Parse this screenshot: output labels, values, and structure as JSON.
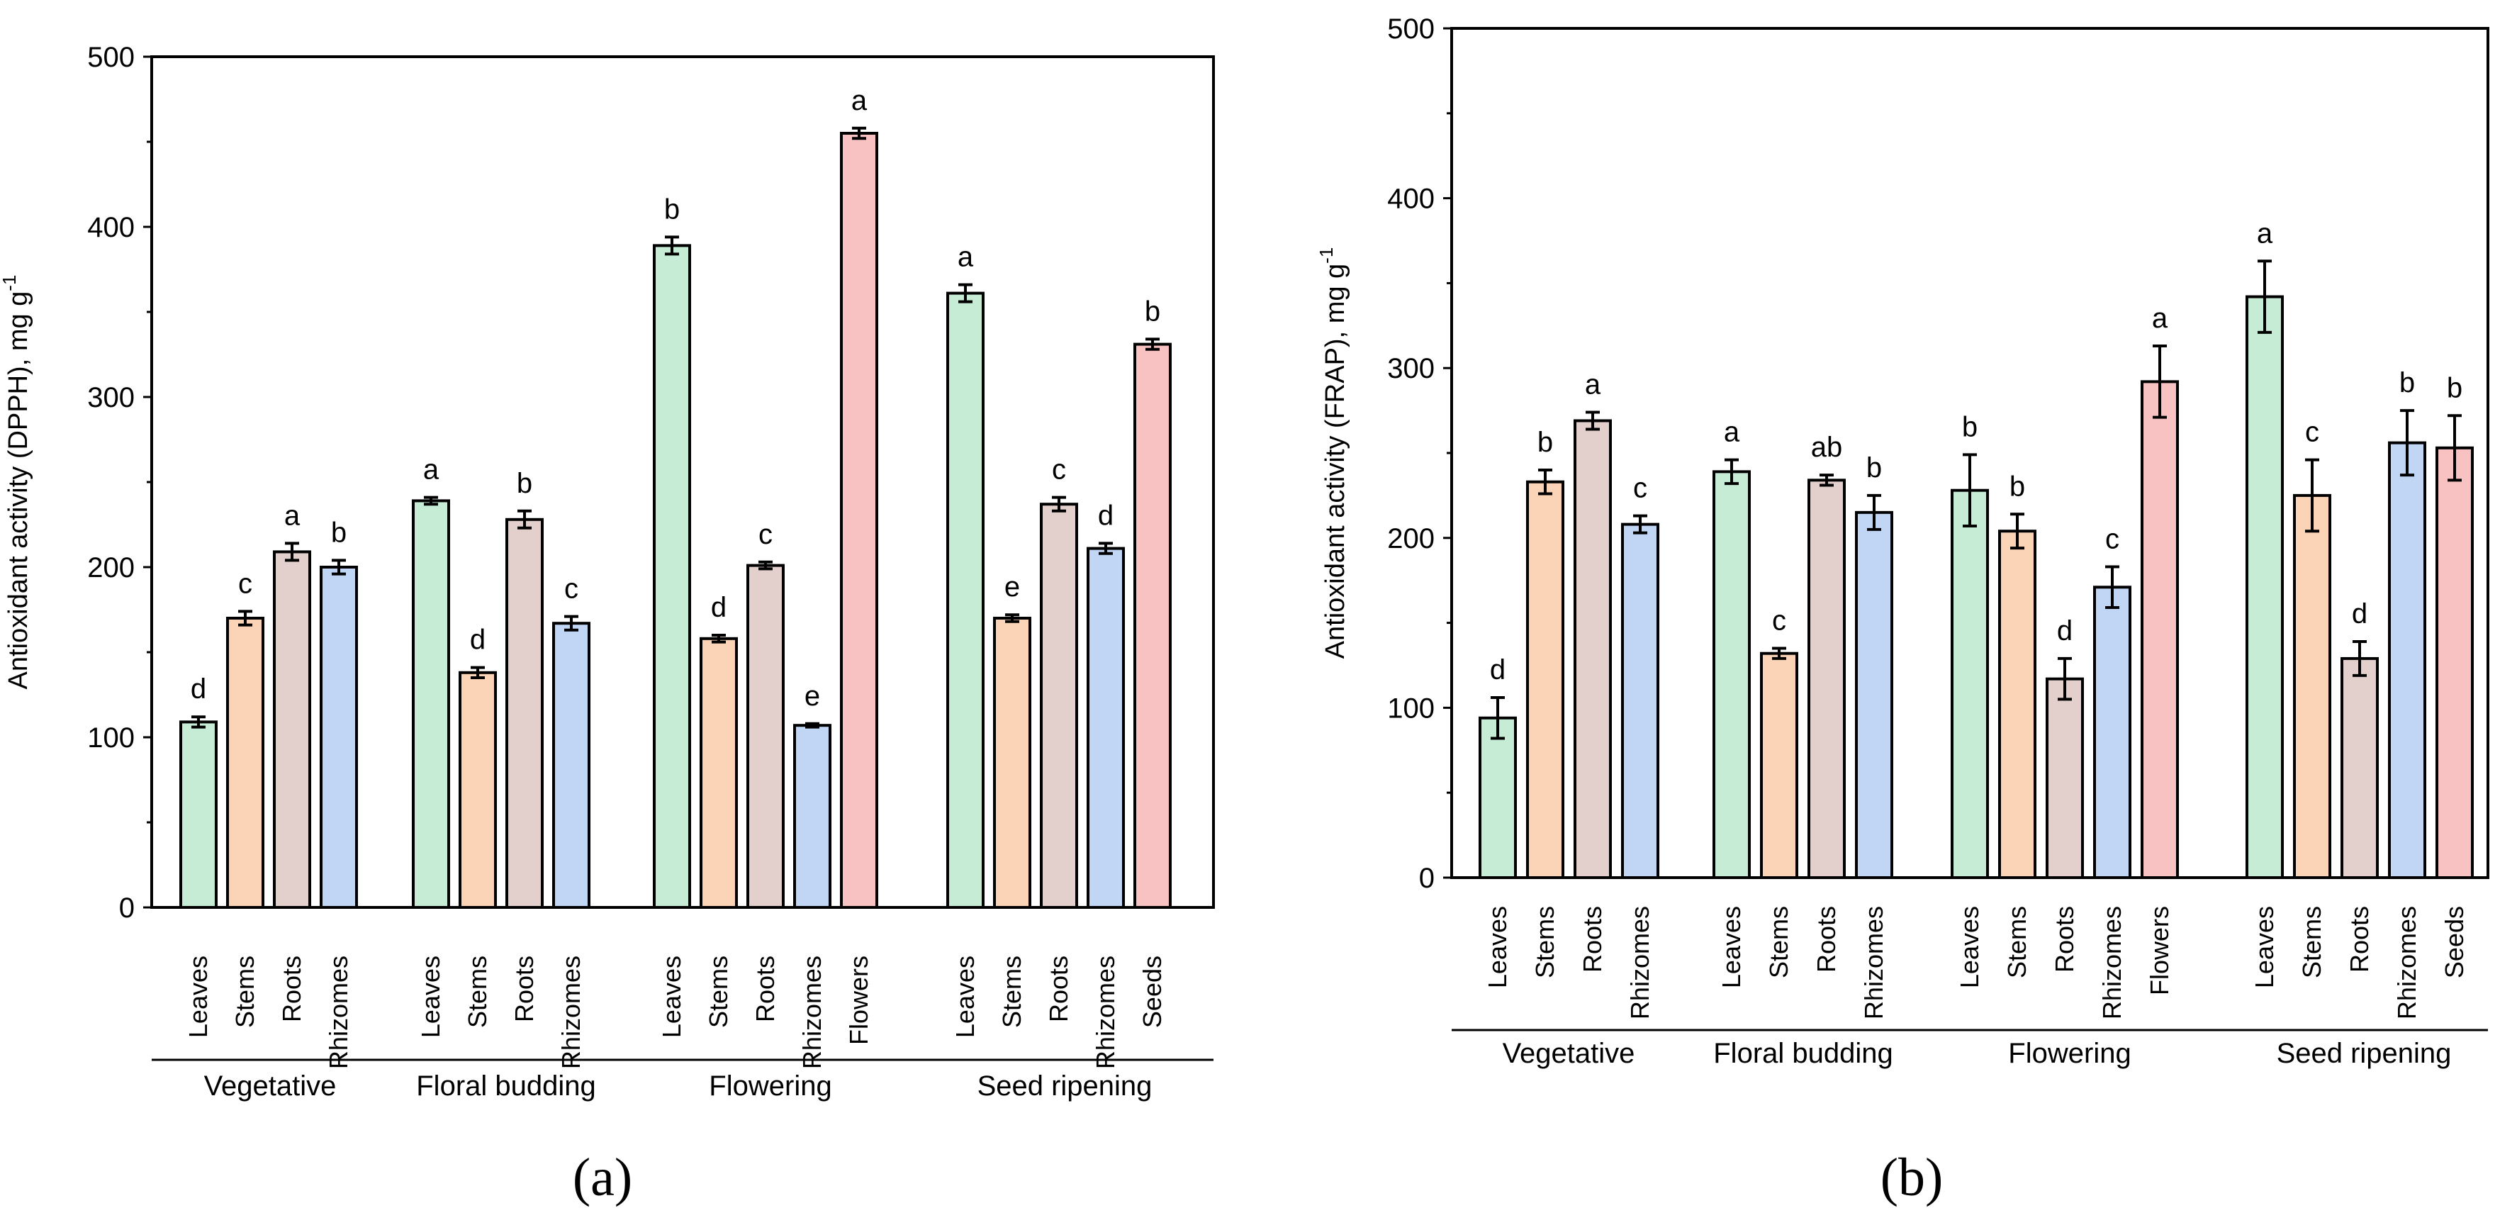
{
  "colors": {
    "Leaves": "#c6ecd6",
    "Stems": "#fbd3b6",
    "Roots": "#e3d0cc",
    "Rhizomes": "#c1d6f5",
    "Flowers": "#f8c2c3",
    "Seeds": "#f8c2c3",
    "stroke": "#000000"
  },
  "chart_data": [
    {
      "type": "bar",
      "panel_label": "(a)",
      "ylabel": "Antioxidant activity (DPPH), mg g",
      "ylabel_sup": "-1",
      "ylim": [
        0,
        500
      ],
      "yticks": [
        0,
        100,
        200,
        300,
        400,
        500
      ],
      "error_bars": true,
      "groups": [
        {
          "name": "Vegetative",
          "bars": [
            {
              "label": "Leaves",
              "value": 109,
              "error": 3,
              "letter": "d"
            },
            {
              "label": "Stems",
              "value": 170,
              "error": 4,
              "letter": "c"
            },
            {
              "label": "Roots",
              "value": 209,
              "error": 5,
              "letter": "a"
            },
            {
              "label": "Rhizomes",
              "value": 200,
              "error": 4,
              "letter": "b"
            }
          ]
        },
        {
          "name": "Floral budding",
          "bars": [
            {
              "label": "Leaves",
              "value": 239,
              "error": 2,
              "letter": "a"
            },
            {
              "label": "Stems",
              "value": 138,
              "error": 3,
              "letter": "d"
            },
            {
              "label": "Roots",
              "value": 228,
              "error": 5,
              "letter": "b"
            },
            {
              "label": "Rhizomes",
              "value": 167,
              "error": 4,
              "letter": "c"
            }
          ]
        },
        {
          "name": "Flowering",
          "bars": [
            {
              "label": "Leaves",
              "value": 389,
              "error": 5,
              "letter": "b"
            },
            {
              "label": "Stems",
              "value": 158,
              "error": 2,
              "letter": "d"
            },
            {
              "label": "Roots",
              "value": 201,
              "error": 2,
              "letter": "c"
            },
            {
              "label": "Rhizomes",
              "value": 107,
              "error": 1,
              "letter": "e"
            },
            {
              "label": "Flowers",
              "value": 455,
              "error": 3,
              "letter": "a"
            }
          ]
        },
        {
          "name": "Seed ripening",
          "bars": [
            {
              "label": "Leaves",
              "value": 361,
              "error": 5,
              "letter": "a"
            },
            {
              "label": "Stems",
              "value": 170,
              "error": 2,
              "letter": "e"
            },
            {
              "label": "Roots",
              "value": 237,
              "error": 4,
              "letter": "c"
            },
            {
              "label": "Rhizomes",
              "value": 211,
              "error": 3,
              "letter": "d"
            },
            {
              "label": "Seeds",
              "value": 331,
              "error": 3,
              "letter": "b"
            }
          ]
        }
      ]
    },
    {
      "type": "bar",
      "panel_label": "(b)",
      "ylabel": "Antioxidant activity (FRAP), mg g",
      "ylabel_sup": "-1",
      "ylim": [
        0,
        500
      ],
      "yticks": [
        0,
        100,
        200,
        300,
        400,
        500
      ],
      "error_bars": true,
      "groups": [
        {
          "name": "Vegetative",
          "bars": [
            {
              "label": "Leaves",
              "value": 94,
              "error": 12,
              "letter": "d"
            },
            {
              "label": "Stems",
              "value": 233,
              "error": 7,
              "letter": "b"
            },
            {
              "label": "Roots",
              "value": 269,
              "error": 5,
              "letter": "a"
            },
            {
              "label": "Rhizomes",
              "value": 208,
              "error": 5,
              "letter": "c"
            }
          ]
        },
        {
          "name": "Floral budding",
          "bars": [
            {
              "label": "Leaves",
              "value": 239,
              "error": 7,
              "letter": "a"
            },
            {
              "label": "Stems",
              "value": 132,
              "error": 3,
              "letter": "c"
            },
            {
              "label": "Roots",
              "value": 234,
              "error": 3,
              "letter": "ab"
            },
            {
              "label": "Rhizomes",
              "value": 215,
              "error": 10,
              "letter": "b"
            }
          ]
        },
        {
          "name": "Flowering",
          "bars": [
            {
              "label": "Leaves",
              "value": 228,
              "error": 21,
              "letter": "b"
            },
            {
              "label": "Stems",
              "value": 204,
              "error": 10,
              "letter": "b"
            },
            {
              "label": "Roots",
              "value": 117,
              "error": 12,
              "letter": "d"
            },
            {
              "label": "Rhizomes",
              "value": 171,
              "error": 12,
              "letter": "c"
            },
            {
              "label": "Flowers",
              "value": 292,
              "error": 21,
              "letter": "a"
            }
          ]
        },
        {
          "name": "Seed ripening",
          "bars": [
            {
              "label": "Leaves",
              "value": 342,
              "error": 21,
              "letter": "a"
            },
            {
              "label": "Stems",
              "value": 225,
              "error": 21,
              "letter": "c"
            },
            {
              "label": "Roots",
              "value": 129,
              "error": 10,
              "letter": "d"
            },
            {
              "label": "Rhizomes",
              "value": 256,
              "error": 19,
              "letter": "b"
            },
            {
              "label": "Seeds",
              "value": 253,
              "error": 19,
              "letter": "b"
            }
          ]
        }
      ]
    }
  ]
}
